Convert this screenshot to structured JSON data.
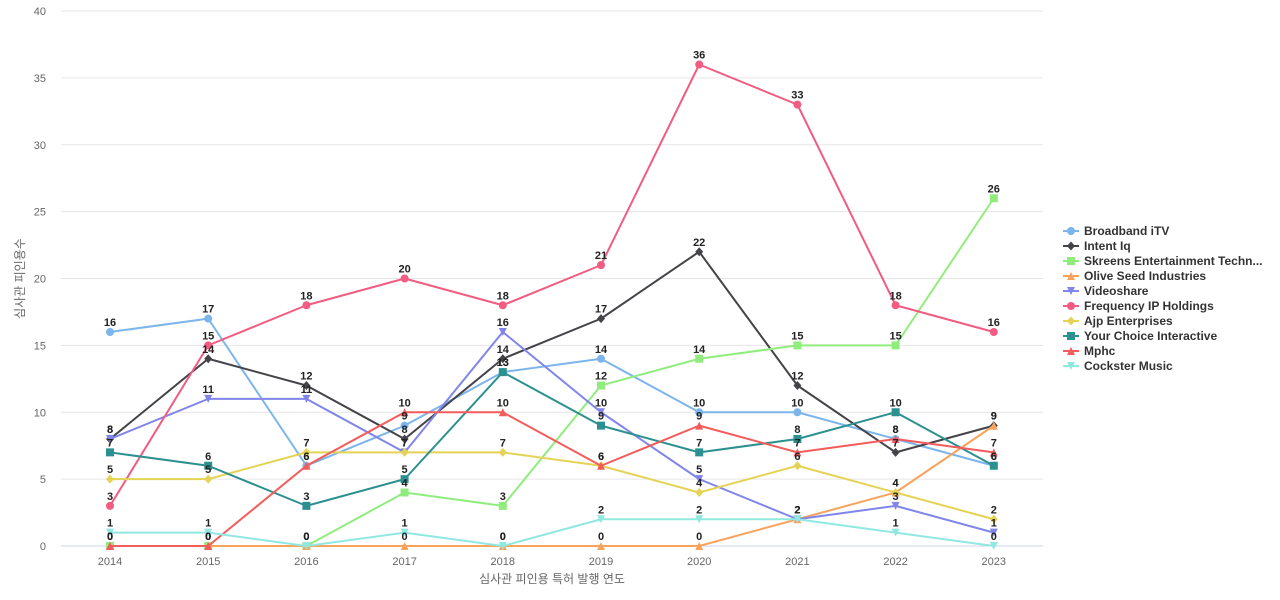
{
  "chart_data": {
    "type": "line",
    "title": "",
    "xlabel": "심사관 피인용 특허 발행 연도",
    "ylabel": "심사관 피인용수",
    "x": [
      2014,
      2015,
      2016,
      2017,
      2018,
      2019,
      2020,
      2021,
      2022,
      2023
    ],
    "ylim": [
      0,
      40
    ],
    "yticks": [
      0,
      5,
      10,
      15,
      20,
      25,
      30,
      35,
      40
    ],
    "grid": true,
    "legend_position": "right",
    "series": [
      {
        "name": "Broadband iTV",
        "color": "#7cb5ec",
        "marker": "circle",
        "values": [
          16,
          17,
          6,
          9,
          13,
          14,
          10,
          10,
          8,
          6
        ]
      },
      {
        "name": "Intent Iq",
        "color": "#434348",
        "marker": "diamond",
        "values": [
          8,
          14,
          12,
          8,
          14,
          17,
          22,
          12,
          7,
          9
        ]
      },
      {
        "name": "Skreens Entertainment Techn...",
        "color": "#90ed7d",
        "marker": "square",
        "values": [
          0,
          0,
          0,
          4,
          3,
          12,
          14,
          15,
          15,
          26
        ]
      },
      {
        "name": "Olive Seed Industries",
        "color": "#f7a35c",
        "marker": "triangle",
        "values": [
          0,
          0,
          0,
          0,
          0,
          0,
          0,
          2,
          4,
          9
        ]
      },
      {
        "name": "Videoshare",
        "color": "#8085e9",
        "marker": "triangle-down",
        "values": [
          8,
          11,
          11,
          7,
          16,
          10,
          5,
          2,
          3,
          1
        ]
      },
      {
        "name": "Frequency IP Holdings",
        "color": "#f15c80",
        "marker": "circle",
        "values": [
          3,
          15,
          18,
          20,
          18,
          21,
          36,
          33,
          18,
          16
        ]
      },
      {
        "name": "Ajp Enterprises",
        "color": "#e4d354",
        "marker": "diamond",
        "values": [
          5,
          5,
          7,
          7,
          7,
          6,
          4,
          6,
          4,
          2
        ]
      },
      {
        "name": "Your Choice Interactive",
        "color": "#2b908f",
        "marker": "square",
        "values": [
          7,
          6,
          3,
          5,
          13,
          9,
          7,
          8,
          10,
          6
        ]
      },
      {
        "name": "Mphc",
        "color": "#f45b5b",
        "marker": "triangle",
        "values": [
          0,
          0,
          6,
          10,
          10,
          6,
          9,
          7,
          8,
          7
        ]
      },
      {
        "name": "Cockster Music",
        "color": "#91e8e1",
        "marker": "triangle-down",
        "values": [
          1,
          1,
          0,
          1,
          0,
          2,
          2,
          2,
          1,
          0
        ]
      }
    ]
  }
}
